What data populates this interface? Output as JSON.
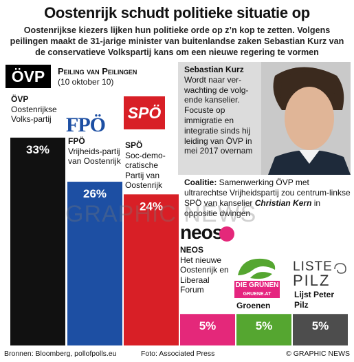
{
  "title": "Oostenrijk schudt politieke situatie op",
  "subtitle": "Oostenrijkse kiezers lijken hun politieke orde op z’n kop te zetten. Volgens peilingen maakt de 31-jarige minister van buitenlandse zaken Sebastian Kurz van de conservatieve Volkspartij kans om een nieuwe regering te vormen",
  "poll_header": {
    "label": "Peiling van Peilingen",
    "date": "(10 oktober 10)"
  },
  "parties": {
    "ovp": {
      "logo": "ÖVP",
      "abbr": "ÖVP",
      "name": "Oostenrijkse Volks-partij"
    },
    "fpo": {
      "logo": "FPÖ",
      "abbr": "FPÖ",
      "name": "Vrijheids-partij van Oostenrijk"
    },
    "spo": {
      "logo": "SPÖ",
      "abbr": "SPÖ",
      "name": "Soc-demo-cratische Partij van Oostenrijk"
    },
    "neos": {
      "logo": "neos",
      "abbr": "NEOS",
      "name": "Het nieuwe Oostenrijk en Liberaal Forum"
    },
    "gruen": {
      "logo": "DIE GRÜNEN",
      "logo_sub": "GRUENE.AT",
      "name": "Groenen"
    },
    "pilz": {
      "logo_top": "LISTE",
      "logo_bottom": "PILZ",
      "name": "Lijst Peter Pilz"
    }
  },
  "chart_data": {
    "type": "bar",
    "categories": [
      "ÖVP",
      "FPÖ",
      "SPÖ",
      "NEOS",
      "Groenen",
      "Lijst Peter Pilz"
    ],
    "values": [
      33,
      26,
      24,
      5,
      5,
      5
    ],
    "value_labels": [
      "33%",
      "26%",
      "24%",
      "5%",
      "5%",
      "5%"
    ],
    "colors": [
      "#111111",
      "#1d4fa3",
      "#d81f26",
      "#e4287a",
      "#55a630",
      "#4d4d4d"
    ],
    "ylim": [
      0,
      33
    ]
  },
  "kurz": {
    "name": "Sebastian Kurz",
    "text": "Wordt naar ver-wachting de volg-ende kanselier. Focuste op immigratie en integratie sinds hij leiding van ÖVP in mei 2017 overnam"
  },
  "coalition": {
    "label": "Coalitie:",
    "text1": " Samenwerking ÖVP met ultrarechtse Vrijheidspartij zou centrum-linkse SPÖ van kanselier ",
    "person": "Christian Kern",
    "text2": " in oppositie dwingen"
  },
  "footer": {
    "sources": "Bronnen: Bloomberg, pollofpolls.eu",
    "photo": "Foto: Associated Press",
    "brand": "© GRAPHIC NEWS"
  },
  "watermark": "GRAPHIC NEWS"
}
